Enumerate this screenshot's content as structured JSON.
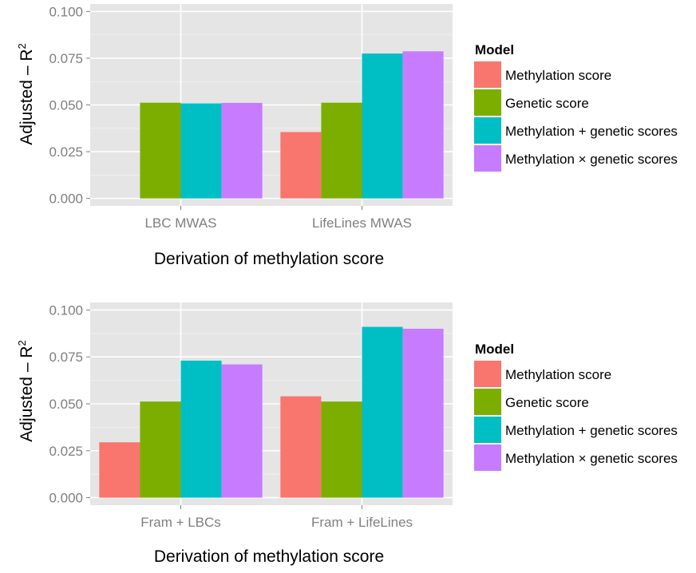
{
  "chart_data": [
    {
      "type": "bar",
      "categories": [
        "LBC MWAS",
        "LifeLines MWAS"
      ],
      "series": [
        {
          "name": "Methylation score",
          "values": [
            0.0,
            0.0355
          ],
          "color": "#F8766D"
        },
        {
          "name": "Genetic score",
          "values": [
            0.0512,
            0.0512
          ],
          "color": "#7CAE00"
        },
        {
          "name": "Methylation + genetic scores",
          "values": [
            0.0508,
            0.0775
          ],
          "color": "#00BFC4"
        },
        {
          "name": "Methylation × genetic scores",
          "values": [
            0.0511,
            0.0787
          ],
          "color": "#C77CFF"
        }
      ],
      "xlabel": "Derivation of methylation score",
      "ylabel_main": "Adjusted – R",
      "ylabel_sup": "2",
      "ylim": [
        -0.004,
        0.104
      ],
      "yticks": [
        0.0,
        0.025,
        0.05,
        0.075,
        0.1
      ],
      "yticklabels": [
        "0.000",
        "0.025",
        "0.050",
        "0.075",
        "0.100"
      ],
      "legend_title": "Model",
      "legend_position": "right",
      "grid": true
    },
    {
      "type": "bar",
      "categories": [
        "Fram + LBCs",
        "Fram + LifeLines"
      ],
      "series": [
        {
          "name": "Methylation score",
          "values": [
            0.0295,
            0.054
          ],
          "color": "#F8766D"
        },
        {
          "name": "Genetic score",
          "values": [
            0.0512,
            0.0512
          ],
          "color": "#7CAE00"
        },
        {
          "name": "Methylation + genetic scores",
          "values": [
            0.073,
            0.091
          ],
          "color": "#00BFC4"
        },
        {
          "name": "Methylation × genetic scores",
          "values": [
            0.071,
            0.09
          ],
          "color": "#C77CFF"
        }
      ],
      "xlabel": "Derivation of methylation score",
      "ylabel_main": "Adjusted – R",
      "ylabel_sup": "2",
      "ylim": [
        -0.004,
        0.104
      ],
      "yticks": [
        0.0,
        0.025,
        0.05,
        0.075,
        0.1
      ],
      "yticklabels": [
        "0.000",
        "0.025",
        "0.050",
        "0.075",
        "0.100"
      ],
      "legend_title": "Model",
      "legend_position": "right",
      "grid": true
    }
  ],
  "colors": {
    "panel_background": "#E5E5E5",
    "grid_major": "#FFFFFF",
    "grid_minor": "#F2F2F2",
    "tick_text": "#7F7F7F"
  }
}
